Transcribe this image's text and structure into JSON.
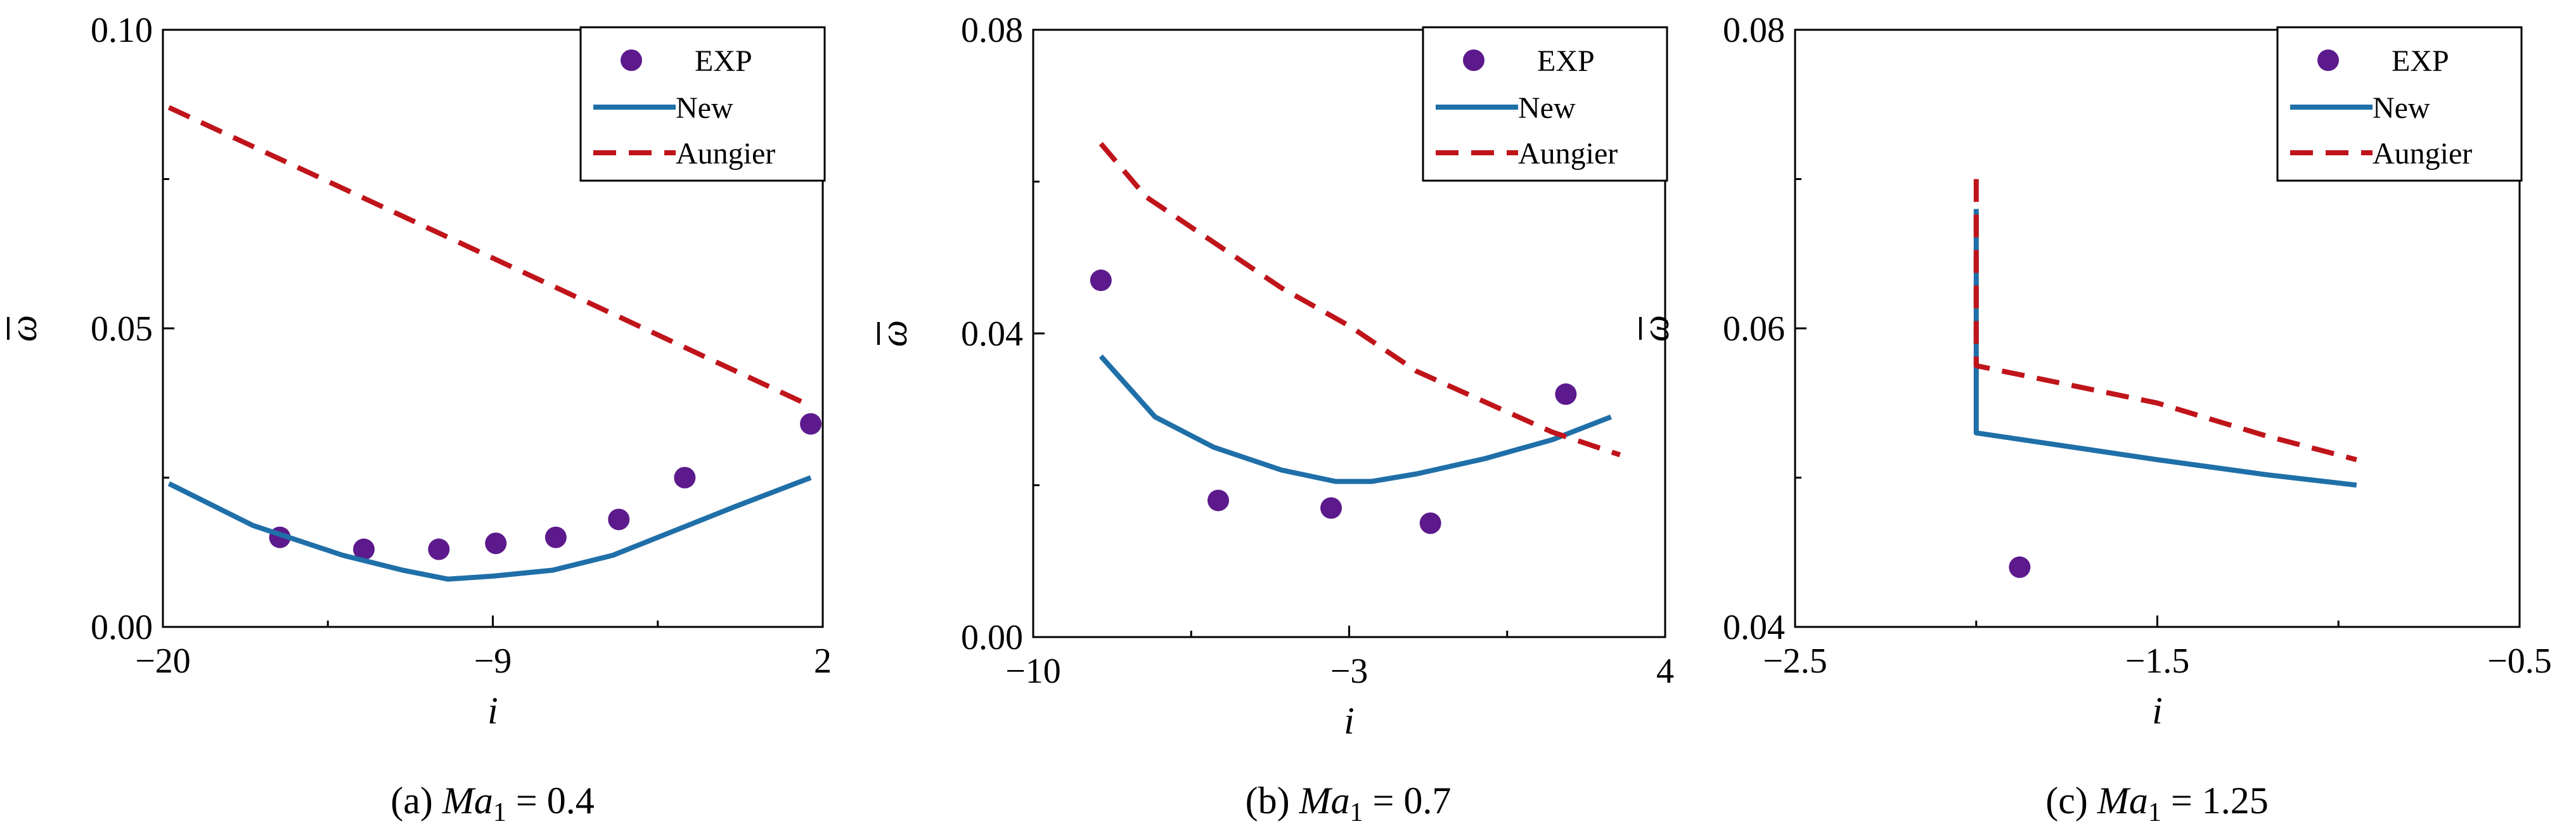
{
  "colors": {
    "exp": "#5c1a8c",
    "new": "#1f6fa8",
    "aungier": "#c0141b",
    "axis": "#000000"
  },
  "chart_data": [
    {
      "type": "line",
      "panel": "a",
      "caption": {
        "label": "(a)",
        "ma": "Ma",
        "sub": "1",
        "rest": " = 0.4"
      },
      "xlabel": "i",
      "ylabel": "ω",
      "xlim": [
        -20,
        2
      ],
      "ylim": [
        0,
        0.1
      ],
      "xticks": [
        -20,
        -9,
        2
      ],
      "xtick_labels": [
        "−20",
        "−9",
        "2"
      ],
      "yticks": [
        0,
        0.05,
        0.1
      ],
      "ytick_labels": [
        "0.00",
        "0.05",
        "0.10"
      ],
      "legend": {
        "position": "top-right",
        "entries": [
          "EXP",
          "New",
          "Aungier"
        ]
      },
      "series": [
        {
          "name": "EXP",
          "kind": "scatter",
          "x": [
            -16.1,
            -13.3,
            -10.8,
            -8.9,
            -6.9,
            -4.8,
            -2.6,
            1.6
          ],
          "y": [
            0.015,
            0.013,
            0.013,
            0.014,
            0.015,
            0.018,
            0.025,
            0.034
          ]
        },
        {
          "name": "New",
          "kind": "line",
          "x": [
            -19.8,
            -17,
            -14,
            -12,
            -10.5,
            -9,
            -7,
            -5,
            -3,
            -1,
            1.6
          ],
          "y": [
            0.024,
            0.017,
            0.012,
            0.0095,
            0.008,
            0.0085,
            0.0095,
            0.012,
            0.016,
            0.02,
            0.025
          ]
        },
        {
          "name": "Aungier",
          "kind": "dashed",
          "x": [
            -19.8,
            1.6
          ],
          "y": [
            0.087,
            0.037
          ]
        }
      ]
    },
    {
      "type": "line",
      "panel": "b",
      "caption": {
        "label": "(b)",
        "ma": "Ma",
        "sub": "1",
        "rest": " = 0.7"
      },
      "xlabel": "i",
      "ylabel": "ω",
      "xlim": [
        -10,
        4
      ],
      "ylim": [
        0,
        0.08
      ],
      "xticks": [
        -10,
        -3,
        4
      ],
      "xtick_labels": [
        "−10",
        "−3",
        "4"
      ],
      "yticks": [
        0,
        0.04,
        0.08
      ],
      "ytick_labels": [
        "0.00",
        "0.04",
        "0.08"
      ],
      "legend": {
        "position": "top-right",
        "entries": [
          "EXP",
          "New",
          "Aungier"
        ]
      },
      "series": [
        {
          "name": "EXP",
          "kind": "scatter",
          "x": [
            -8.5,
            -5.9,
            -3.4,
            -1.2,
            1.8
          ],
          "y": [
            0.047,
            0.018,
            0.017,
            0.015,
            0.032
          ]
        },
        {
          "name": "New",
          "kind": "line",
          "x": [
            -8.5,
            -7.3,
            -6,
            -4.5,
            -3.3,
            -2.5,
            -1.5,
            0,
            1.5,
            2.8
          ],
          "y": [
            0.037,
            0.029,
            0.025,
            0.022,
            0.0205,
            0.0205,
            0.0215,
            0.0235,
            0.026,
            0.029
          ]
        },
        {
          "name": "Aungier",
          "kind": "dashed",
          "x": [
            -8.5,
            -7.5,
            -6,
            -4.5,
            -3,
            -1.5,
            0,
            1.5,
            3
          ],
          "y": [
            0.065,
            0.058,
            0.052,
            0.046,
            0.041,
            0.035,
            0.031,
            0.027,
            0.024
          ]
        }
      ]
    },
    {
      "type": "line",
      "panel": "c",
      "caption": {
        "label": "(c)",
        "ma": "Ma",
        "sub": "1",
        "rest": " = 1.25"
      },
      "xlabel": "i",
      "ylabel": "ω",
      "xlim": [
        -2.5,
        -0.5
      ],
      "ylim": [
        0.04,
        0.08
      ],
      "xticks": [
        -2.5,
        -1.5,
        -0.5
      ],
      "xtick_labels": [
        "−2.5",
        "−1.5",
        "−0.5"
      ],
      "yticks": [
        0.04,
        0.06,
        0.08
      ],
      "ytick_labels": [
        "0.04",
        "0.06",
        "0.08"
      ],
      "legend": {
        "position": "top-right",
        "entries": [
          "EXP",
          "New",
          "Aungier"
        ]
      },
      "series": [
        {
          "name": "EXP",
          "kind": "scatter",
          "x": [
            -1.88
          ],
          "y": [
            0.044
          ]
        },
        {
          "name": "New",
          "kind": "line",
          "x": [
            -2.0,
            -2.0,
            -1.5,
            -1.2,
            -0.95
          ],
          "y": [
            0.068,
            0.053,
            0.0512,
            0.0502,
            0.0495
          ]
        },
        {
          "name": "Aungier",
          "kind": "dashed",
          "x": [
            -2.0,
            -2.0,
            -1.5,
            -1.2,
            -0.95
          ],
          "y": [
            0.07,
            0.0575,
            0.055,
            0.0528,
            0.0512
          ]
        }
      ]
    }
  ]
}
